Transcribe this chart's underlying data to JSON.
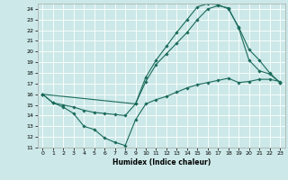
{
  "xlabel": "Humidex (Indice chaleur)",
  "bg_color": "#cce8e8",
  "line_color": "#1a6b5a",
  "grid_color": "#ffffff",
  "xlim": [
    -0.5,
    23.5
  ],
  "ylim": [
    11,
    24.5
  ],
  "xticks": [
    0,
    1,
    2,
    3,
    4,
    5,
    6,
    7,
    8,
    9,
    10,
    11,
    12,
    13,
    14,
    15,
    16,
    17,
    18,
    19,
    20,
    21,
    22,
    23
  ],
  "yticks": [
    11,
    12,
    13,
    14,
    15,
    16,
    17,
    18,
    19,
    20,
    21,
    22,
    23,
    24
  ],
  "line1_x": [
    0,
    1,
    2,
    3,
    4,
    5,
    6,
    7,
    8,
    9,
    10,
    11,
    12,
    13,
    14,
    15,
    16,
    17,
    18,
    19,
    20,
    21,
    22,
    23
  ],
  "line1_y": [
    16.0,
    15.2,
    14.8,
    14.2,
    13.0,
    12.7,
    11.9,
    11.5,
    11.2,
    13.6,
    15.1,
    15.5,
    15.8,
    16.2,
    16.6,
    16.9,
    17.1,
    17.3,
    17.5,
    17.1,
    17.2,
    17.4,
    17.4,
    17.2
  ],
  "line2_x": [
    0,
    1,
    2,
    3,
    4,
    5,
    6,
    7,
    8,
    9,
    10,
    11,
    12,
    13,
    14,
    15,
    16,
    17,
    18,
    19,
    20,
    21,
    22,
    23
  ],
  "line2_y": [
    16.0,
    15.2,
    15.0,
    14.8,
    14.5,
    14.3,
    14.2,
    14.1,
    14.0,
    15.1,
    17.2,
    18.8,
    19.8,
    20.8,
    21.8,
    23.0,
    24.0,
    24.3,
    24.1,
    22.2,
    19.2,
    18.2,
    17.9,
    17.1
  ],
  "line3_x": [
    0,
    9,
    10,
    11,
    12,
    13,
    14,
    15,
    16,
    17,
    18,
    19,
    20,
    21,
    22,
    23
  ],
  "line3_y": [
    16.0,
    15.1,
    17.6,
    19.2,
    20.5,
    21.8,
    23.0,
    24.2,
    24.5,
    24.4,
    24.0,
    22.3,
    20.2,
    19.2,
    18.0,
    17.1
  ]
}
